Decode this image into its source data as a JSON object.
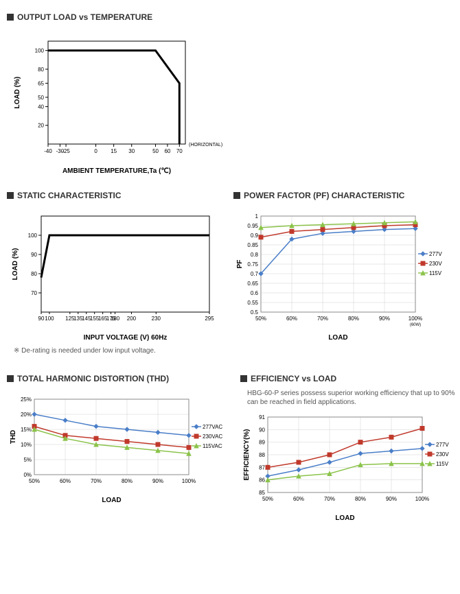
{
  "chart1": {
    "title": "OUTPUT LOAD vs TEMPERATURE",
    "type": "line",
    "xlabel": "AMBIENT TEMPERATURE,Ta (℃)",
    "ylabel": "LOAD (%)",
    "x_ticks": [
      -40,
      -30,
      -25,
      0,
      15,
      30,
      50,
      60,
      70
    ],
    "y_ticks": [
      20,
      40,
      50,
      65,
      80,
      100
    ],
    "xlim": [
      -40,
      75
    ],
    "ylim": [
      0,
      110
    ],
    "line_color": "#000000",
    "line_width": 3,
    "data_x": [
      -40,
      50,
      70,
      70
    ],
    "data_y": [
      100,
      100,
      65,
      0
    ],
    "annotation": "(HORIZONTAL)",
    "grid_color": "#e0e0e0",
    "axis_color": "#000000",
    "background": "#ffffff",
    "label_fontsize": 10,
    "tick_fontsize": 8
  },
  "chart2": {
    "title": "STATIC CHARACTERISTIC",
    "type": "line",
    "xlabel": "INPUT VOLTAGE (V) 60Hz",
    "ylabel": "LOAD (%)",
    "x_ticks": [
      90,
      100,
      125,
      135,
      145,
      155,
      165,
      175,
      180,
      200,
      230,
      295
    ],
    "y_ticks": [
      70,
      80,
      90,
      100
    ],
    "xlim": [
      90,
      295
    ],
    "ylim": [
      60,
      110
    ],
    "line_color": "#000000",
    "line_width": 3,
    "data_x": [
      90,
      100,
      295
    ],
    "data_y": [
      78,
      100,
      100
    ],
    "note": "※ De-rating is needed under low input voltage.",
    "background": "#ffffff",
    "axis_color": "#000000",
    "label_fontsize": 10,
    "tick_fontsize": 8
  },
  "chart3": {
    "title": "POWER FACTOR (PF) CHARACTERISTIC",
    "type": "line",
    "xlabel": "LOAD",
    "ylabel": "PF",
    "x_ticks": [
      "50%",
      "60%",
      "70%",
      "80%",
      "90%",
      "100%"
    ],
    "x_sublabel": "(60W)",
    "y_ticks": [
      0.5,
      0.55,
      0.6,
      0.65,
      0.7,
      0.75,
      0.8,
      0.85,
      0.9,
      0.95,
      1
    ],
    "xlim": [
      50,
      100
    ],
    "ylim": [
      0.5,
      1
    ],
    "grid_color": "#d0d0d0",
    "background": "#ffffff",
    "series": [
      {
        "name": "277V",
        "color": "#4a7ec8",
        "marker": "diamond",
        "x": [
          50,
          60,
          70,
          80,
          90,
          100
        ],
        "y": [
          0.7,
          0.88,
          0.91,
          0.92,
          0.93,
          0.935
        ]
      },
      {
        "name": "230V",
        "color": "#c0392b",
        "marker": "square",
        "x": [
          50,
          60,
          70,
          80,
          90,
          100
        ],
        "y": [
          0.89,
          0.92,
          0.93,
          0.94,
          0.95,
          0.955
        ]
      },
      {
        "name": "115V",
        "color": "#8bc34a",
        "marker": "triangle",
        "x": [
          50,
          60,
          70,
          80,
          90,
          100
        ],
        "y": [
          0.94,
          0.95,
          0.955,
          0.96,
          0.965,
          0.97
        ]
      }
    ],
    "line_width": 1.5,
    "label_fontsize": 10,
    "tick_fontsize": 8
  },
  "chart4": {
    "title": "TOTAL HARMONIC DISTORTION (THD)",
    "type": "line",
    "xlabel": "LOAD",
    "ylabel": "THD",
    "x_ticks": [
      "50%",
      "60%",
      "70%",
      "80%",
      "90%",
      "100%"
    ],
    "y_ticks": [
      "0%",
      "5%",
      "10%",
      "15%",
      "20%",
      "25%"
    ],
    "xlim": [
      50,
      100
    ],
    "ylim": [
      0,
      25
    ],
    "grid_color": "#d0d0d0",
    "background": "#ffffff",
    "series": [
      {
        "name": "277VAC",
        "color": "#4a7ec8",
        "marker": "diamond",
        "x": [
          50,
          60,
          70,
          80,
          90,
          100
        ],
        "y": [
          20,
          18,
          16,
          15,
          14,
          13
        ]
      },
      {
        "name": "230VAC",
        "color": "#c0392b",
        "marker": "square",
        "x": [
          50,
          60,
          70,
          80,
          90,
          100
        ],
        "y": [
          16,
          13,
          12,
          11,
          10,
          9
        ]
      },
      {
        "name": "115VAC",
        "color": "#8bc34a",
        "marker": "triangle",
        "x": [
          50,
          60,
          70,
          80,
          90,
          100
        ],
        "y": [
          15,
          12,
          10,
          9,
          8,
          7
        ]
      }
    ],
    "line_width": 1.5,
    "label_fontsize": 10,
    "tick_fontsize": 8
  },
  "chart5": {
    "title": "EFFICIENCY vs LOAD",
    "subtitle": "HBG-60-P series possess superior working efficiency that up to 90% can be reached in field applications.",
    "type": "line",
    "xlabel": "LOAD",
    "ylabel": "EFFICIENCY(%)",
    "x_ticks": [
      "50%",
      "60%",
      "70%",
      "80%",
      "90%",
      "100%"
    ],
    "y_ticks": [
      85,
      86,
      87,
      88,
      89,
      90,
      91
    ],
    "xlim": [
      50,
      100
    ],
    "ylim": [
      85,
      91
    ],
    "grid_color": "#d0d0d0",
    "background": "#ffffff",
    "series": [
      {
        "name": "277V",
        "color": "#4a7ec8",
        "marker": "diamond",
        "x": [
          50,
          60,
          70,
          80,
          90,
          100
        ],
        "y": [
          86.3,
          86.8,
          87.4,
          88.1,
          88.3,
          88.5
        ]
      },
      {
        "name": "230V",
        "color": "#c0392b",
        "marker": "square",
        "x": [
          50,
          60,
          70,
          80,
          90,
          100
        ],
        "y": [
          87,
          87.4,
          88,
          89,
          89.4,
          90.1
        ]
      },
      {
        "name": "115V",
        "color": "#8bc34a",
        "marker": "triangle",
        "x": [
          50,
          60,
          70,
          80,
          90,
          100
        ],
        "y": [
          86,
          86.3,
          86.5,
          87.2,
          87.3,
          87.3
        ]
      }
    ],
    "line_width": 1.5,
    "label_fontsize": 10,
    "tick_fontsize": 8
  }
}
